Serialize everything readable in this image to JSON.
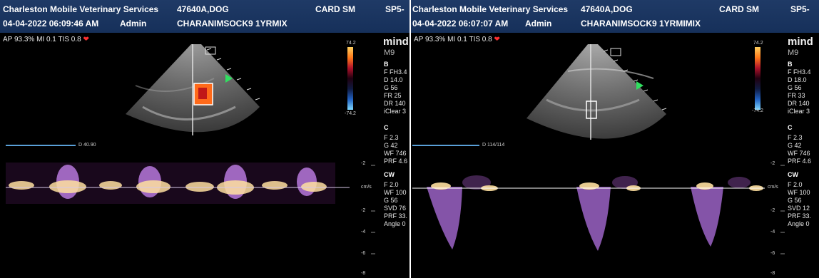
{
  "left": {
    "clinic": "Charleston Mobile Veterinary Services",
    "patient_id": "47640A,DOG",
    "exam": "CARD SM",
    "probe": "SP5-",
    "datetime": "04-04-2022 06:09:46 AM",
    "operator": "Admin",
    "patient_name": "CHARANIMSOCK9 1YRMIX",
    "acoustic": "AP 93.3% MI 0.1 TIS 0.8",
    "brand": "mind",
    "model": "M9",
    "cbar_top": "74.2",
    "cbar_bottom": "-74.2",
    "b_header": "B",
    "b_params": [
      "F FH3.4",
      "D 14.0",
      "G 56",
      "FR 25",
      "DR 140",
      "iClear 3"
    ],
    "c_header": "C",
    "c_params": [
      "F 2.3",
      "G 42",
      "WF 746",
      "PRF 4.6"
    ],
    "cw_header": "CW",
    "cw_params": [
      "F 2.0",
      "WF 100",
      "G 56",
      "SVD 76",
      "PRF 33.",
      "Angle 0"
    ],
    "gate_label": "D 40.90",
    "scale_labels": [
      "-2",
      "cm/s",
      "-2",
      "-4",
      "-6",
      "-8"
    ]
  },
  "right": {
    "clinic": "Charleston Mobile Veterinary Services",
    "patient_id": "47640A,DOG",
    "exam": "CARD SM",
    "probe": "SP5-",
    "datetime": "04-04-2022 06:07:07 AM",
    "operator": "Admin",
    "patient_name": "CHARANIMSOCK9 1YRMIMIX",
    "acoustic": "AP 93.3% MI 0.1 TIS 0.8",
    "brand": "mind",
    "model": "M9",
    "cbar_top": "74.2",
    "cbar_bottom": "-74.2",
    "b_header": "B",
    "b_params": [
      "F FH3.4",
      "D 18.0",
      "G 56",
      "FR 33",
      "DR 140",
      "iClear 3"
    ],
    "c_header": "C",
    "c_params": [
      "F 2.3",
      "G 42",
      "WF 746",
      "PRF 4.6"
    ],
    "cw_header": "CW",
    "cw_params": [
      "F 2.0",
      "WF 100",
      "G 56",
      "SVD 12",
      "PRF 33.",
      "Angle 0"
    ],
    "gate_label": "D 114/114",
    "scale_labels": [
      "-2",
      "cm/s",
      "-2",
      "-4",
      "-6",
      "-8"
    ]
  },
  "colors": {
    "header_bg": "#1c3763",
    "doppler_glow": "#ffe7b0",
    "doppler_violet": "#b070e0",
    "heart_icon": "#ff3030",
    "gate_line": "#5aa0d8"
  }
}
